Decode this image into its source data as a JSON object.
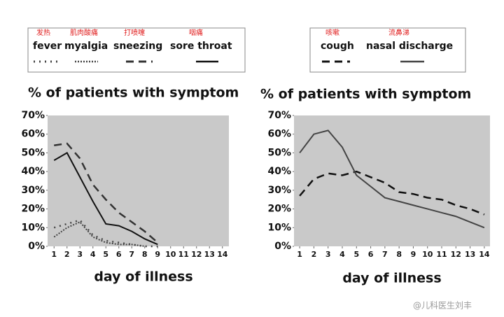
{
  "chart_data": [
    {
      "type": "line",
      "title": "% of patients with symptom",
      "xlabel": "day of illness",
      "x": [
        1,
        2,
        3,
        4,
        5,
        6,
        7,
        8,
        9,
        10,
        11,
        12,
        13,
        14
      ],
      "xlim": [
        0.5,
        14.5
      ],
      "xticks": [
        1,
        2,
        3,
        4,
        5,
        6,
        7,
        8,
        9,
        10,
        11,
        12,
        13,
        14
      ],
      "ylim": [
        0,
        70
      ],
      "yticks": [
        {
          "value": 0,
          "label": "0%"
        },
        {
          "value": 10,
          "label": "10%"
        },
        {
          "value": 20,
          "label": "20%"
        },
        {
          "value": 30,
          "label": "30%"
        },
        {
          "value": 40,
          "label": "40%"
        },
        {
          "value": 50,
          "label": "50%"
        },
        {
          "value": 60,
          "label": "60%"
        },
        {
          "value": 70,
          "label": "70%"
        }
      ],
      "grid": false,
      "series": [
        {
          "name": "fever",
          "translation": "发热",
          "color": "#444444",
          "dash": "dotted",
          "values": [
            10,
            12,
            14,
            6,
            3,
            2,
            1,
            0,
            0,
            null,
            null,
            null,
            null,
            null
          ]
        },
        {
          "name": "myalgia",
          "translation": "肌肉酸痛",
          "color": "#444444",
          "dash": "densely-dotted",
          "values": [
            5,
            10,
            13,
            5,
            2,
            1,
            1,
            0,
            null,
            null,
            null,
            null,
            null,
            null
          ]
        },
        {
          "name": "sneezing",
          "translation": "打喷嚏",
          "color": "#333333",
          "dash": "dashed",
          "values": [
            54,
            55,
            47,
            33,
            25,
            18,
            13,
            8,
            2,
            null,
            null,
            null,
            null,
            null
          ]
        },
        {
          "name": "sore throat",
          "translation": "咽痛",
          "color": "#111111",
          "dash": "solid",
          "values": [
            46,
            50,
            37,
            24,
            12,
            11,
            8,
            4,
            1,
            null,
            null,
            null,
            null,
            null
          ]
        }
      ]
    },
    {
      "type": "line",
      "title": "% of patients with symptom",
      "xlabel": "day of illness",
      "x": [
        1,
        2,
        3,
        4,
        5,
        6,
        7,
        8,
        9,
        10,
        11,
        12,
        13,
        14
      ],
      "xlim": [
        0.6,
        14.4
      ],
      "xticks": [
        1,
        2,
        3,
        4,
        5,
        6,
        7,
        8,
        9,
        10,
        11,
        12,
        13,
        14
      ],
      "ylim": [
        0,
        70
      ],
      "yticks": [
        {
          "value": 0,
          "label": "0%"
        },
        {
          "value": 10,
          "label": "10%"
        },
        {
          "value": 20,
          "label": "20%"
        },
        {
          "value": 30,
          "label": "30%"
        },
        {
          "value": 40,
          "label": "40%"
        },
        {
          "value": 50,
          "label": "50%"
        },
        {
          "value": 60,
          "label": "60%"
        },
        {
          "value": 70,
          "label": "70%"
        }
      ],
      "grid": false,
      "series": [
        {
          "name": "cough",
          "translation": "咳嗽",
          "color": "#111111",
          "dash": "dashed",
          "values": [
            27,
            36,
            39,
            38,
            40,
            37,
            34,
            29,
            28,
            26,
            25,
            22,
            20,
            17
          ]
        },
        {
          "name": "nasal discharge",
          "translation": "流鼻涕",
          "color": "#444444",
          "dash": "solid",
          "values": [
            50,
            60,
            62,
            53,
            38,
            32,
            26,
            24,
            22,
            20,
            18,
            16,
            13,
            10
          ]
        }
      ]
    }
  ],
  "watermark": "@儿科医生刘丰"
}
